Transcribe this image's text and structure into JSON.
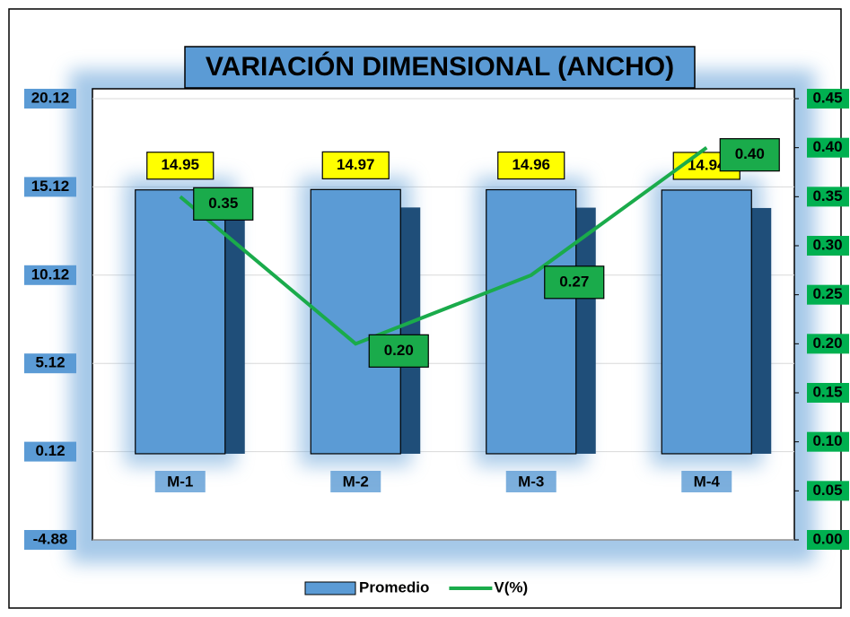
{
  "chart_data": {
    "type": "bar",
    "title": "VARIACIÓN DIMENSIONAL (ANCHO)",
    "categories": [
      "M-1",
      "M-2",
      "M-3",
      "M-4"
    ],
    "series": [
      {
        "name": "Promedio",
        "color": "#5b9bd5",
        "values": [
          14.95,
          14.97,
          14.96,
          14.94
        ]
      },
      {
        "name": "V(%)",
        "color": "#1aab4b",
        "axis": "y2",
        "values": [
          0.35,
          0.2,
          0.27,
          0.4
        ],
        "value_labels": [
          "0.35",
          "0.20",
          "0.27",
          "0.40"
        ]
      }
    ],
    "ylim": [
      -4.88,
      20.12
    ],
    "yticks": [
      -4.88,
      0.12,
      5.12,
      10.12,
      15.12,
      20.12
    ],
    "y2lim": [
      0,
      0.45
    ],
    "y2ticks": [
      {
        "value": 0,
        "label": "0.00"
      },
      0.05,
      {
        "value": 0.1,
        "label": "0.10"
      },
      0.15,
      {
        "value": 0.2,
        "label": "0.20"
      },
      0.25,
      {
        "value": 0.3,
        "label": "0.30"
      },
      0.35,
      {
        "value": 0.4,
        "label": "0.40"
      },
      0.45
    ],
    "grid": true,
    "legend": "bottom"
  }
}
